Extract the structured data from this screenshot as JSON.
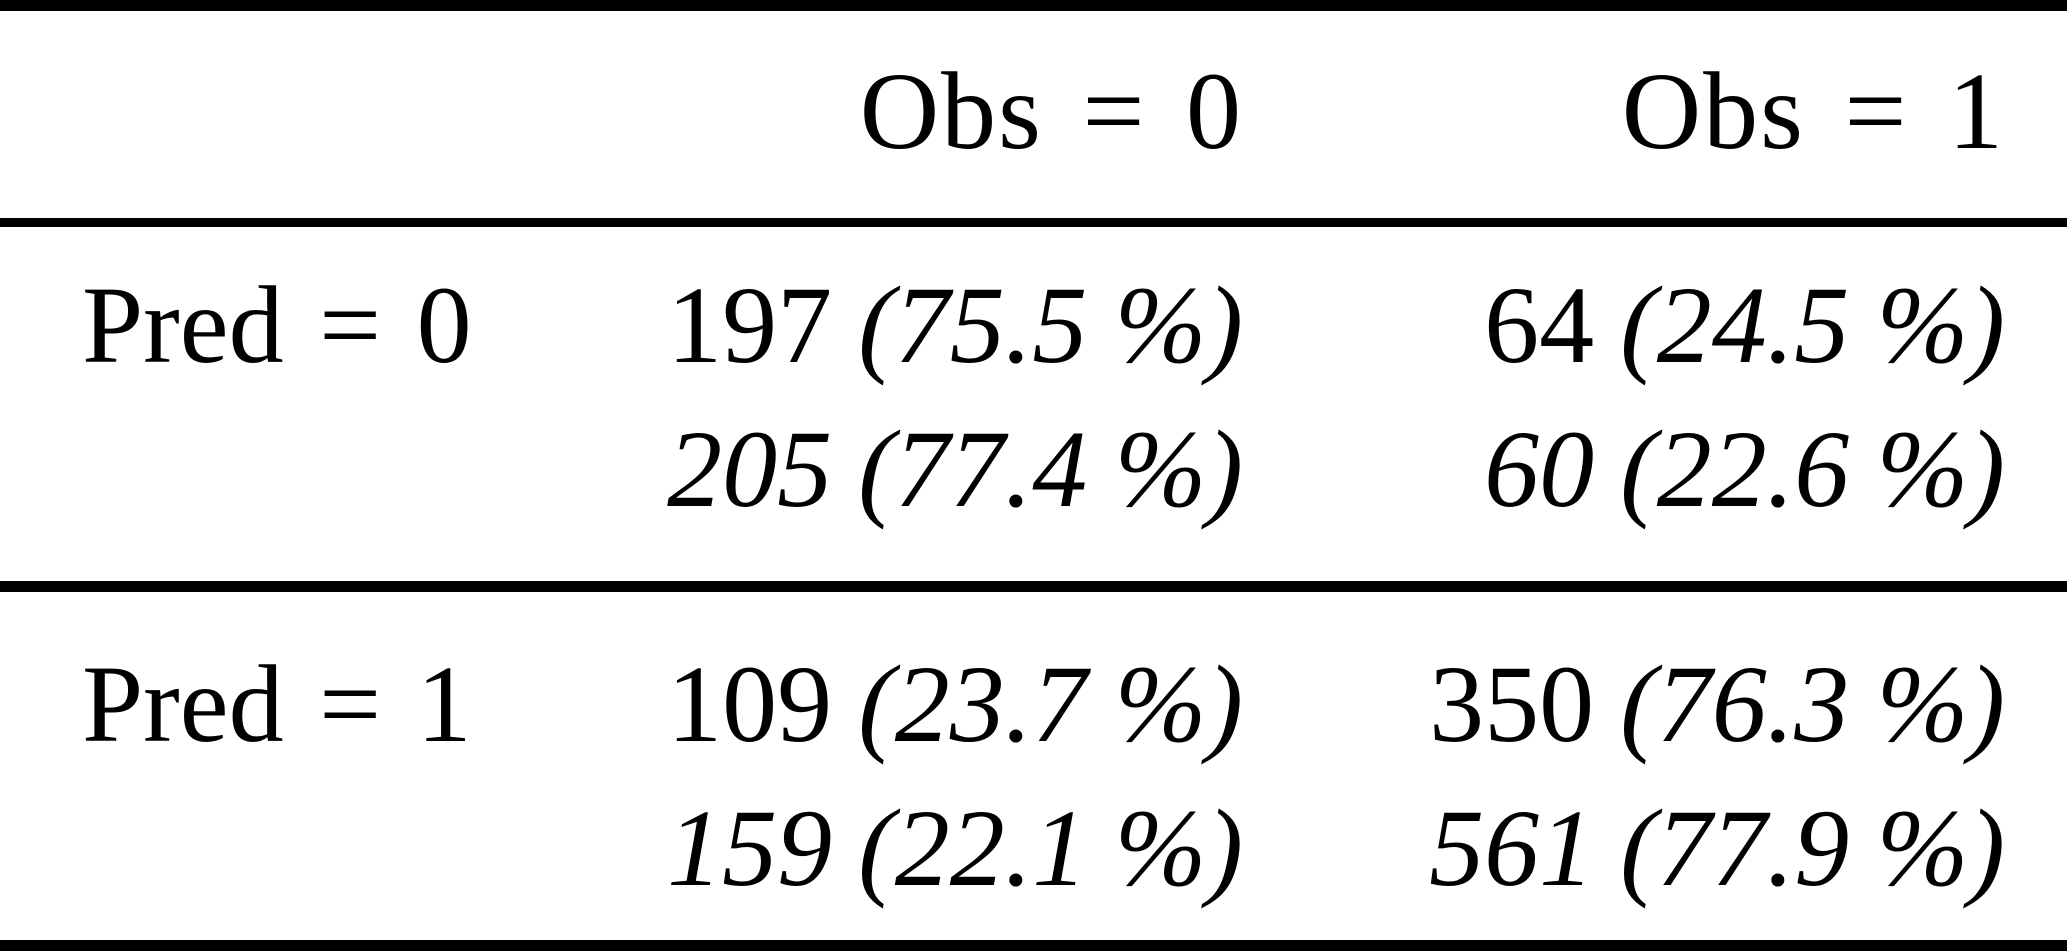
{
  "page": {
    "background_color": "#ffffff",
    "text_color": "#000000",
    "description": "Confusion matrix table from an academic paper comparing predicted vs observed classes; first line of each cell in roman type, second line in italics"
  },
  "table": {
    "col_headers": [
      {
        "label": "Obs = 0"
      },
      {
        "label": "Obs = 1"
      }
    ],
    "rows": [
      {
        "label": "Pred = 0",
        "cells": [
          {
            "primary_count": "197",
            "primary_pct": "(75.5 %)",
            "secondary_count": "205",
            "secondary_pct": "(77.4 %)"
          },
          {
            "primary_count": "64",
            "primary_pct": "(24.5 %)",
            "secondary_count": "60",
            "secondary_pct": "(22.6 %)"
          }
        ]
      },
      {
        "label": "Pred = 1",
        "cells": [
          {
            "primary_count": "109",
            "primary_pct": "(23.7 %)",
            "secondary_count": "159",
            "secondary_pct": "(22.1 %)"
          },
          {
            "primary_count": "350",
            "primary_pct": "(76.3 %)",
            "secondary_count": "561",
            "secondary_pct": "(77.9 %)"
          }
        ]
      }
    ]
  },
  "chart_data": {
    "type": "table",
    "col_headers": [
      "Obs = 0",
      "Obs = 1"
    ],
    "row_headers": [
      "Pred = 0",
      "Pred = 1"
    ],
    "rows": [
      {
        "row": "Pred = 0",
        "obs0": {
          "count_roman": 197,
          "pct_roman": 75.5,
          "count_italic": 205,
          "pct_italic": 77.4
        },
        "obs1": {
          "count_roman": 64,
          "pct_roman": 24.5,
          "count_italic": 60,
          "pct_italic": 22.6
        }
      },
      {
        "row": "Pred = 1",
        "obs0": {
          "count_roman": 109,
          "pct_roman": 23.7,
          "count_italic": 159,
          "pct_italic": 22.1
        },
        "obs1": {
          "count_roman": 350,
          "pct_roman": 76.3,
          "count_italic": 561,
          "pct_italic": 77.9
        }
      }
    ]
  }
}
